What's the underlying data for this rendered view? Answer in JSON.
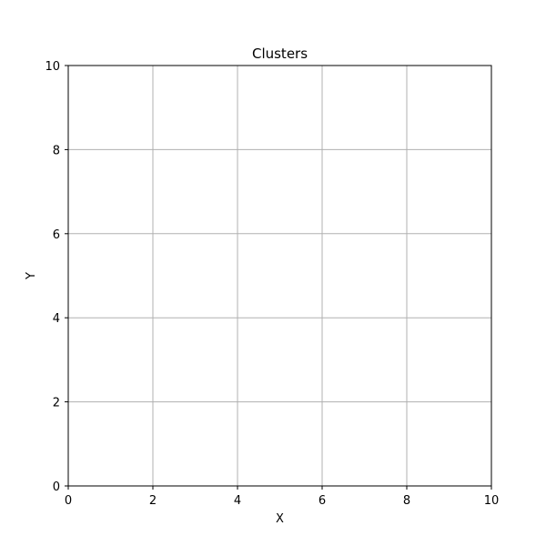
{
  "chart_data": {
    "type": "scatter",
    "title": "Clusters",
    "xlabel": "X",
    "ylabel": "Y",
    "xlim": [
      0,
      10
    ],
    "ylim": [
      0,
      10
    ],
    "xticks": [
      0,
      2,
      4,
      6,
      8,
      10
    ],
    "yticks": [
      0,
      2,
      4,
      6,
      8,
      10
    ],
    "grid": true,
    "series": []
  },
  "colors": {
    "grid": "#b0b0b0",
    "axis": "#000000",
    "background": "#ffffff"
  }
}
